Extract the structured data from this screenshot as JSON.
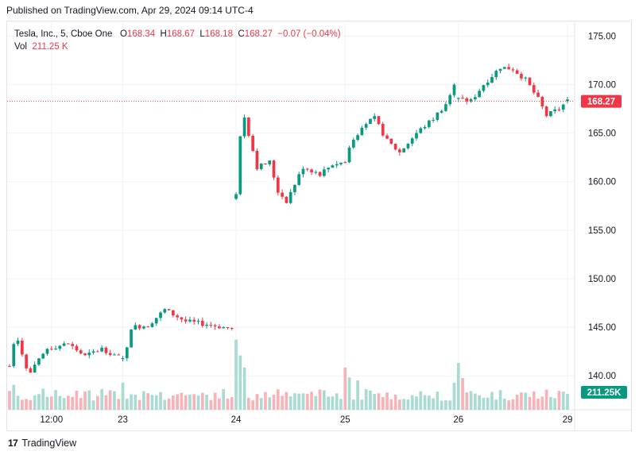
{
  "header": {
    "published": "Published on TradingView.com, Apr 29, 2024 09:14 UTC-4"
  },
  "legend": {
    "symbol": "Tesla, Inc., 5, Cboe One",
    "o_label": "O",
    "o_value": "168.34",
    "h_label": "H",
    "h_value": "168.67",
    "l_label": "L",
    "l_value": "168.18",
    "c_label": "C",
    "c_value": "168.27",
    "change": "−0.07 (−0.04%)",
    "vol_label": "Vol",
    "vol_value": "211.25 K"
  },
  "footer": {
    "brand": "TradingView",
    "logo_text": "17"
  },
  "colors": {
    "up": "#089981",
    "down": "#f23645",
    "vol_up": "#a9dbd3",
    "vol_down": "#f8b3b8",
    "grid": "#f0f3fa",
    "axis_text": "#131722"
  },
  "chart_data": {
    "type": "candlestick",
    "symbol": "Tesla, Inc.",
    "interval": "5",
    "exchange": "Cboe One",
    "ylim": [
      136.5,
      176.5
    ],
    "y_ticks": [
      "175.00",
      "170.00",
      "165.00",
      "160.00",
      "155.00",
      "150.00",
      "145.00",
      "140.00"
    ],
    "x_ticks": [
      "12:00",
      "23",
      "24",
      "25",
      "26",
      "29"
    ],
    "last_price": "168.27",
    "last_volume": "211.25K",
    "grid": true,
    "price_path": [
      {
        "x": 0,
        "y": 141.0
      },
      {
        "x": 1.5,
        "y": 144.6
      },
      {
        "x": 4.5,
        "y": 140.0
      },
      {
        "x": 9,
        "y": 142.8
      },
      {
        "x": 14,
        "y": 143.3
      },
      {
        "x": 18,
        "y": 142.0
      },
      {
        "x": 22,
        "y": 142.8
      },
      {
        "x": 27.5,
        "y": 141.6
      },
      {
        "x": 29,
        "y": 145.0
      },
      {
        "x": 33,
        "y": 145.2
      },
      {
        "x": 37,
        "y": 146.8
      },
      {
        "x": 42,
        "y": 145.6
      },
      {
        "x": 47,
        "y": 145.3
      },
      {
        "x": 53.5,
        "y": 144.8
      },
      {
        "x": 54,
        "y": 158.5
      },
      {
        "x": 55.5,
        "y": 167.5
      },
      {
        "x": 59,
        "y": 161.5
      },
      {
        "x": 62,
        "y": 162.0
      },
      {
        "x": 64,
        "y": 159.0
      },
      {
        "x": 66,
        "y": 158.0
      },
      {
        "x": 70,
        "y": 161.5
      },
      {
        "x": 74,
        "y": 160.8
      },
      {
        "x": 77,
        "y": 161.8
      },
      {
        "x": 80,
        "y": 162.0
      },
      {
        "x": 80.5,
        "y": 158.5
      },
      {
        "x": 81,
        "y": 163.5
      },
      {
        "x": 84,
        "y": 165.8
      },
      {
        "x": 87,
        "y": 166.5
      },
      {
        "x": 90,
        "y": 164.2
      },
      {
        "x": 93,
        "y": 163.0
      },
      {
        "x": 97,
        "y": 165.0
      },
      {
        "x": 101,
        "y": 166.5
      },
      {
        "x": 104,
        "y": 168.0
      },
      {
        "x": 106.5,
        "y": 170.3
      },
      {
        "x": 107,
        "y": 168.5
      },
      {
        "x": 110,
        "y": 168.3
      },
      {
        "x": 113,
        "y": 170.0
      },
      {
        "x": 117,
        "y": 171.8
      },
      {
        "x": 120,
        "y": 171.6
      },
      {
        "x": 123,
        "y": 170.5
      },
      {
        "x": 126,
        "y": 168.5
      },
      {
        "x": 128,
        "y": 166.8
      },
      {
        "x": 131,
        "y": 167.5
      },
      {
        "x": 133,
        "y": 168.3
      }
    ],
    "volume_spikes": [
      {
        "x": 0,
        "v": 250
      },
      {
        "x": 1,
        "v": 330
      },
      {
        "x": 27,
        "v": 360
      },
      {
        "x": 54,
        "v": 930
      },
      {
        "x": 55,
        "v": 720
      },
      {
        "x": 56,
        "v": 560
      },
      {
        "x": 80,
        "v": 560
      },
      {
        "x": 81,
        "v": 430
      },
      {
        "x": 83,
        "v": 390
      },
      {
        "x": 106,
        "v": 360
      },
      {
        "x": 107,
        "v": 620
      },
      {
        "x": 108,
        "v": 420
      },
      {
        "x": 133,
        "v": 211
      }
    ],
    "volume_max": 1000,
    "sessions": [
      {
        "label": "23",
        "start": 27
      },
      {
        "label": "24",
        "start": 54
      },
      {
        "label": "25",
        "start": 80
      },
      {
        "label": "26",
        "start": 107
      },
      {
        "label": "29",
        "start": 133
      }
    ],
    "midday_tick": {
      "label": "12:00",
      "x": 10
    }
  }
}
